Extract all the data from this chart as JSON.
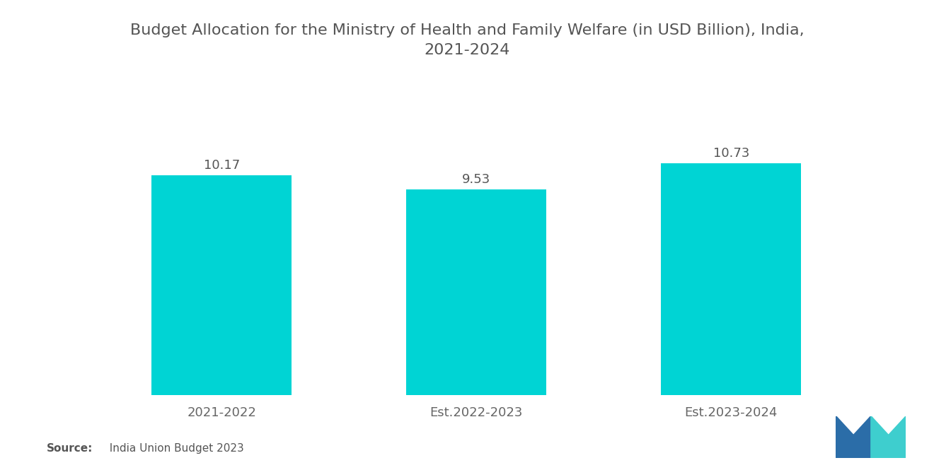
{
  "title": "Budget Allocation for the Ministry of Health and Family Welfare (in USD Billion), India,\n2021-2024",
  "categories": [
    "2021-2022",
    "Est.2022-2023",
    "Est.2023-2024"
  ],
  "values": [
    10.17,
    9.53,
    10.73
  ],
  "bar_color": "#00D4D4",
  "background_color": "#ffffff",
  "title_fontsize": 16,
  "label_fontsize": 13,
  "value_fontsize": 13,
  "source_bold": "Source:",
  "source_text": "  India Union Budget 2023",
  "ylim": [
    0,
    13.5
  ],
  "bar_width": 0.55,
  "logo_blue": "#2B6DA8",
  "logo_teal": "#3ECECE"
}
